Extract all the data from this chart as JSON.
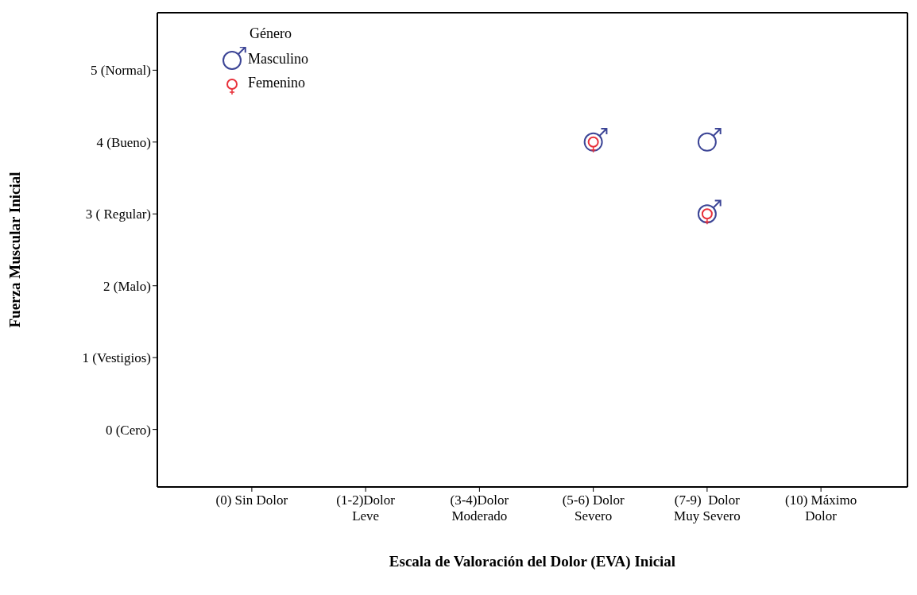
{
  "chart_data": {
    "type": "scatter",
    "xlabel": "Escala de Valoración del Dolor  (EVA) Inicial",
    "ylabel": "Fuerza Muscular Inicial",
    "legend_title": "Género",
    "legend": "top left",
    "marker": "circle",
    "grid": false,
    "categories": [
      "(0) Sin Dolor",
      "(1-2)Dolor\nLeve",
      "(3-4)Dolor\nModerado",
      "(5-6) Dolor\nSevero",
      "(7-9)  Dolor\nMuy Severo",
      "(10) Máximo\nDolor"
    ],
    "ylim": [
      -0.8,
      5.8
    ],
    "yticks": [
      {
        "value": 0,
        "label": "0 (Cero)"
      },
      {
        "value": 1,
        "label": "1 (Vestigios)"
      },
      {
        "value": 2,
        "label": "2 (Malo)"
      },
      {
        "value": 3,
        "label": "3 ( Regular)"
      },
      {
        "value": 4,
        "label": "4 (Bueno)"
      },
      {
        "value": 5,
        "label": "5 (Normal)"
      }
    ],
    "series": [
      {
        "name": "Masculino",
        "color": "#3c4596",
        "x": [
          "(5-6) Dolor\nSevero",
          "(7-9)  Dolor\nMuy Severo",
          "(7-9)  Dolor\nMuy Severo"
        ],
        "values": [
          4,
          4,
          3
        ]
      },
      {
        "name": "Femenino",
        "color": "#e8303a",
        "x": [
          "(5-6) Dolor\nSevero",
          "(7-9)  Dolor\nMuy Severo"
        ],
        "values": [
          4,
          3
        ]
      }
    ]
  }
}
